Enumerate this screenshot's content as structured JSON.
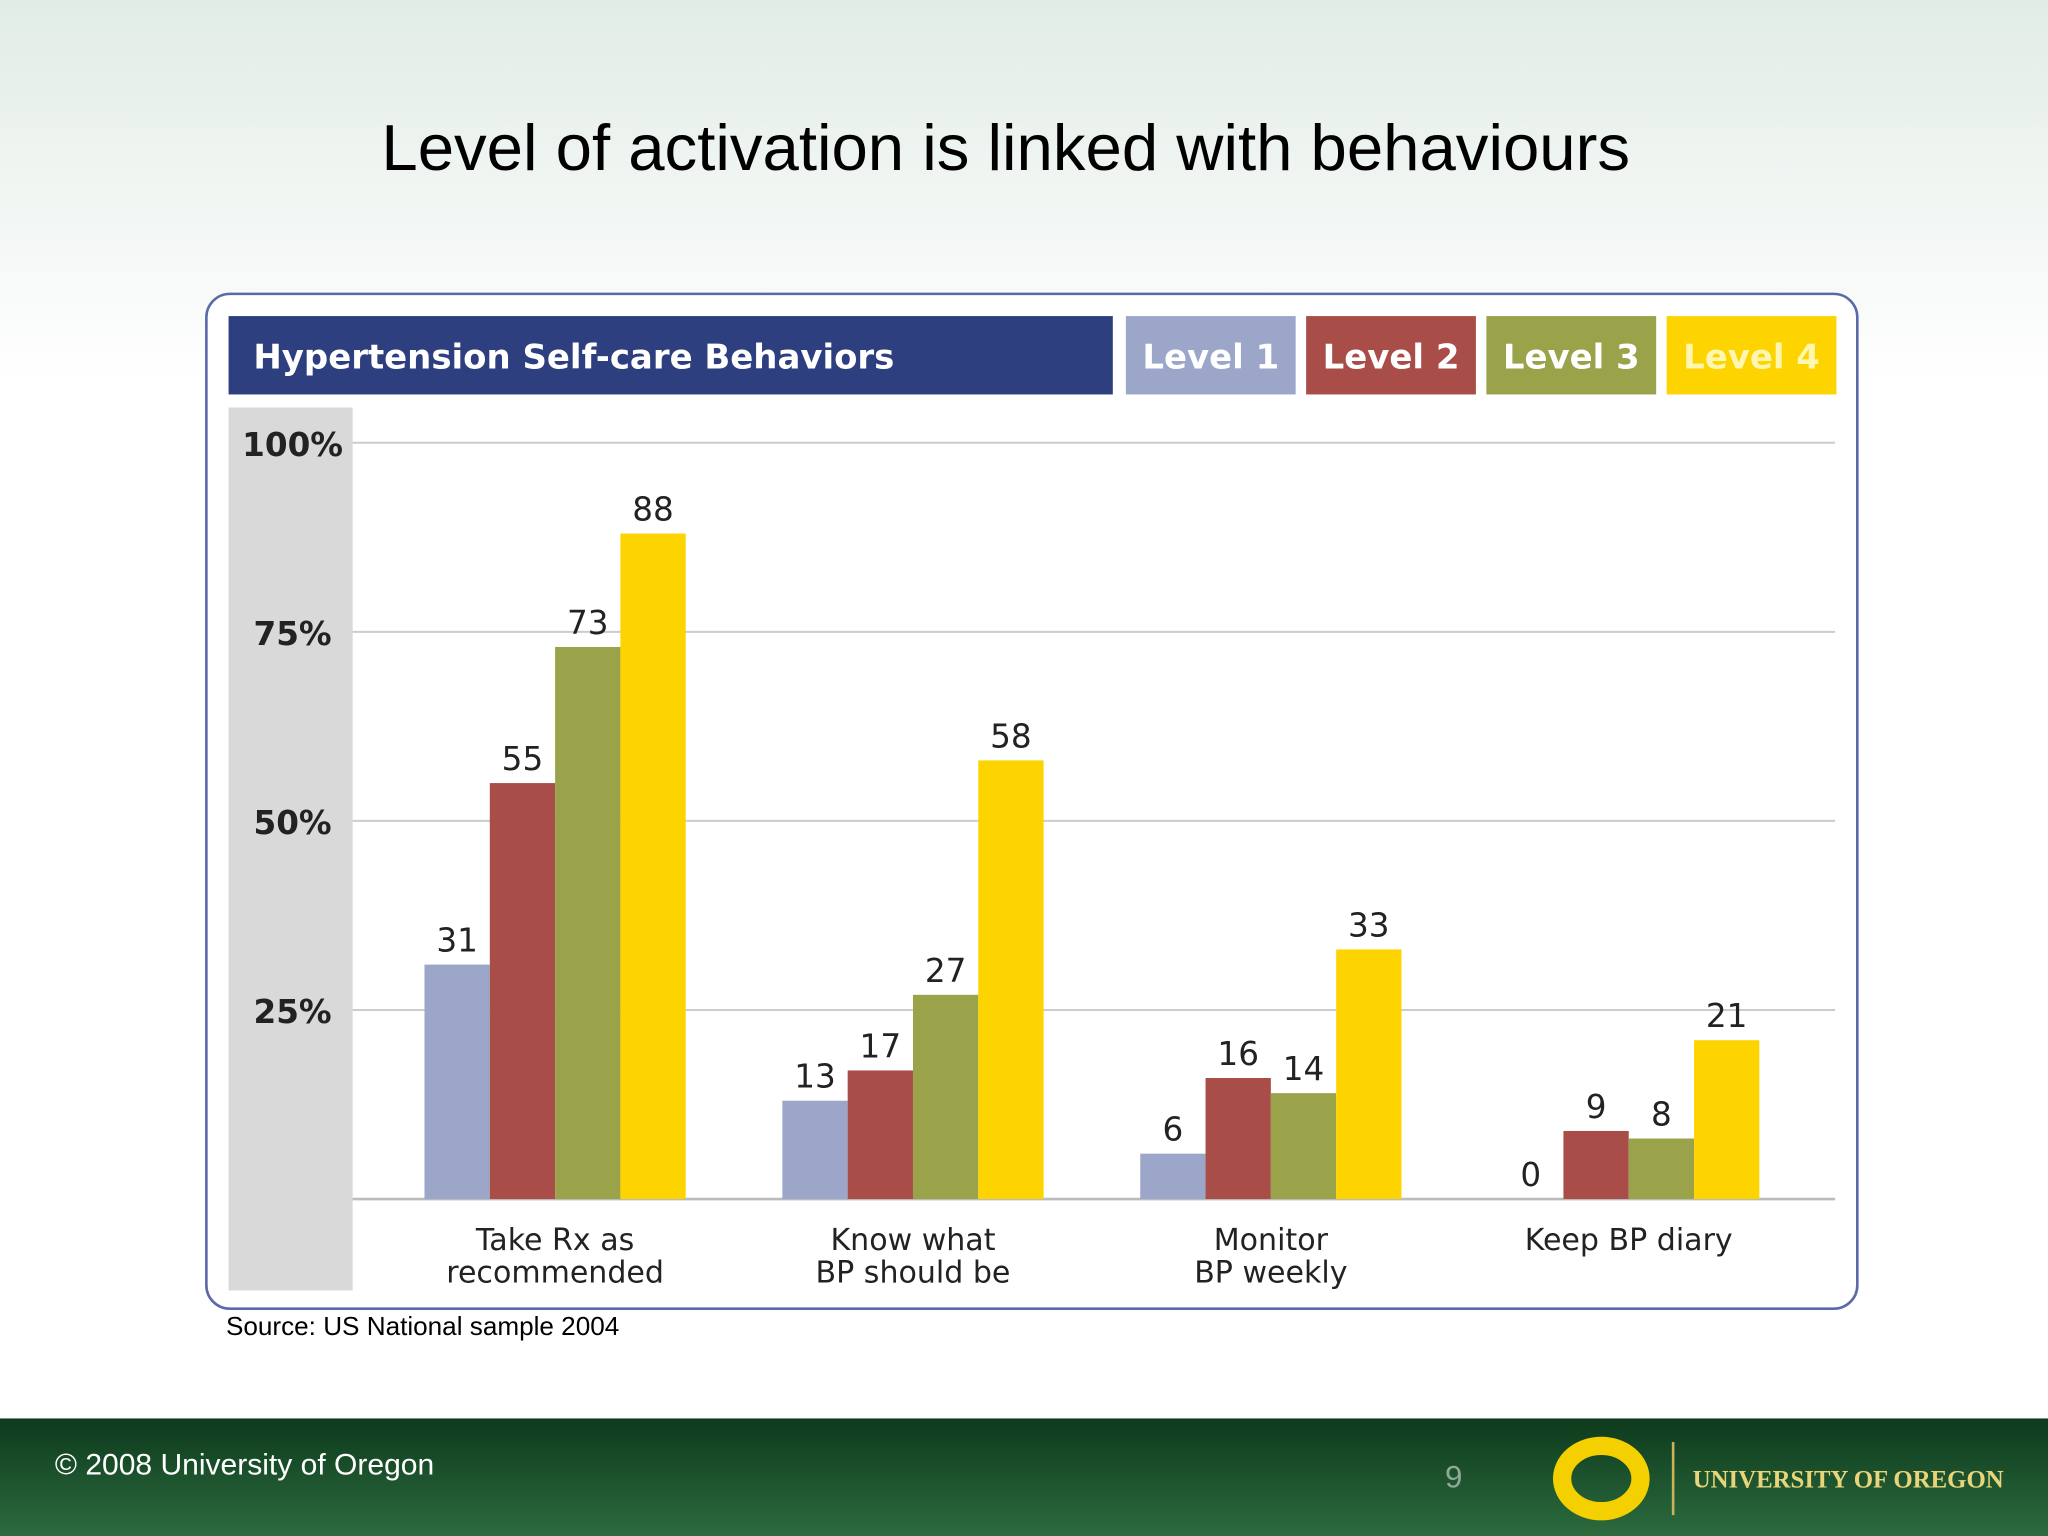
{
  "slide": {
    "title": "Level of activation is linked with behaviours",
    "source": "Source: US National sample 2004",
    "footer": "© 2008 University of Oregon",
    "page_number": "9",
    "logo_text": "UNIVERSITY OF OREGON"
  },
  "chart_data": {
    "type": "bar",
    "title": "Hypertension Self-care Behaviors",
    "categories": [
      "Take Rx as\nrecommended",
      "Know what\nBP should be",
      "Monitor\nBP weekly",
      "Keep BP diary"
    ],
    "series": [
      {
        "name": "Level 1",
        "color": "#9ba6c8",
        "values": [
          31,
          13,
          6,
          0
        ]
      },
      {
        "name": "Level 2",
        "color": "#a84d48",
        "values": [
          55,
          17,
          16,
          9
        ]
      },
      {
        "name": "Level 3",
        "color": "#9aa24a",
        "values": [
          73,
          27,
          14,
          8
        ]
      },
      {
        "name": "Level 4",
        "color": "#fed400",
        "values": [
          88,
          58,
          33,
          21
        ]
      }
    ],
    "ylim": [
      0,
      100
    ],
    "yticks": [
      {
        "value": 25,
        "label": "25%"
      },
      {
        "value": 50,
        "label": "50%"
      },
      {
        "value": 75,
        "label": "75%"
      },
      {
        "value": 100,
        "label": "100%"
      }
    ],
    "grid": true
  }
}
